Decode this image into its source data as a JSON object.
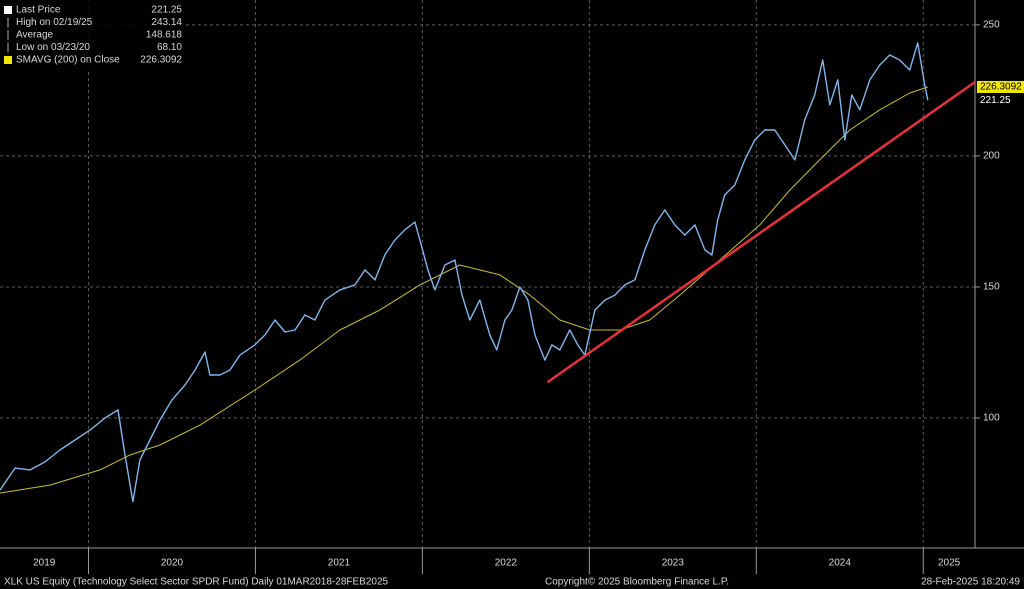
{
  "chart_data": {
    "type": "line",
    "legend": [
      {
        "label": "Last Price",
        "value": "221.25",
        "color": "#ffffff"
      },
      {
        "label": "High on 02/19/25",
        "value": "243.14"
      },
      {
        "label": "Average",
        "value": "148.618"
      },
      {
        "label": "Low on 03/23/20",
        "value": "68.10"
      },
      {
        "label": "SMAVG (200)  on Close",
        "value": "226.3092",
        "color": "#f2e600"
      }
    ],
    "series": [
      {
        "color": "#7fb6ee",
        "x": [
          2019.47,
          2019.56,
          2019.65,
          2019.739,
          2019.829,
          2019.919,
          2020.009,
          2020.099,
          2020.177,
          2020.219,
          2020.266,
          2020.308,
          2020.368,
          2020.428,
          2020.5,
          2020.578,
          2020.638,
          2020.698,
          2020.727,
          2020.787,
          2020.847,
          2020.907,
          2020.997,
          2021.057,
          2021.117,
          2021.177,
          2021.237,
          2021.296,
          2021.356,
          2021.416,
          2021.506,
          2021.596,
          2021.656,
          2021.716,
          2021.775,
          2021.835,
          2021.895,
          2021.955,
          2021.985,
          2022.033,
          2022.075,
          2022.135,
          2022.195,
          2022.237,
          2022.284,
          2022.344,
          2022.404,
          2022.446,
          2022.494,
          2022.536,
          2022.584,
          2022.632,
          2022.674,
          2022.734,
          2022.776,
          2022.823,
          2022.883,
          2022.931,
          2022.973,
          2023.033,
          2023.093,
          2023.153,
          2023.213,
          2023.273,
          2023.332,
          2023.392,
          2023.452,
          2023.512,
          2023.572,
          2023.632,
          2023.692,
          2023.734,
          2023.769,
          2023.811,
          2023.871,
          2023.931,
          2023.991,
          2024.051,
          2024.111,
          2024.171,
          2024.231,
          2024.29,
          2024.35,
          2024.398,
          2024.44,
          2024.488,
          2024.53,
          2024.572,
          2024.62,
          2024.68,
          2024.74,
          2024.799,
          2024.859,
          2024.919,
          2024.967,
          2025.009,
          2025.027
        ],
        "values": [
          72.5,
          80.9,
          80.2,
          83.2,
          87.8,
          91.6,
          95.4,
          100,
          103.1,
          85.9,
          68.1,
          84.0,
          91.6,
          99.2,
          106.9,
          112.6,
          118.3,
          125.2,
          116.4,
          116.4,
          118.3,
          124.0,
          127.9,
          131.7,
          137.4,
          132.8,
          133.6,
          139.3,
          137.4,
          145.0,
          148.9,
          150.8,
          156.5,
          152.7,
          162.2,
          167.9,
          171.8,
          174.8,
          167.9,
          156.5,
          148.9,
          158.4,
          160.3,
          146.9,
          137.4,
          145.0,
          131.7,
          126.0,
          137.4,
          141.2,
          150.0,
          145.0,
          131.7,
          122.1,
          127.9,
          126.0,
          133.6,
          127.9,
          124.0,
          141.2,
          145.0,
          146.9,
          150.8,
          152.7,
          164.1,
          173.7,
          179.4,
          173.7,
          169.8,
          173.7,
          164.1,
          162.2,
          175.6,
          185.1,
          188.9,
          198.5,
          206.1,
          209.9,
          209.9,
          204.2,
          198.5,
          213.7,
          223.3,
          236.6,
          219.5,
          229.0,
          206.1,
          223.3,
          217.6,
          229.0,
          234.7,
          238.5,
          236.6,
          232.8,
          243.14,
          227.1,
          221.25
        ]
      },
      {
        "color": "#c8c020",
        "x": [
          2019.47,
          2019.769,
          2020.069,
          2020.248,
          2020.428,
          2020.668,
          2020.997,
          2021.266,
          2021.506,
          2021.745,
          2021.985,
          2022.224,
          2022.464,
          2022.644,
          2022.823,
          2023.003,
          2023.183,
          2023.362,
          2023.542,
          2023.781,
          2024.021,
          2024.201,
          2024.38,
          2024.56,
          2024.74,
          2024.919,
          2025.027
        ],
        "values": [
          71.4,
          74.4,
          80.2,
          85.9,
          89.7,
          97.3,
          110.7,
          122.1,
          133.6,
          141.2,
          150.8,
          158.4,
          154.6,
          146.9,
          137.4,
          133.6,
          133.6,
          137.4,
          146.9,
          160.3,
          173.7,
          187.0,
          198.5,
          209.9,
          217.6,
          224.0,
          226.3092
        ]
      }
    ],
    "trendline": {
      "color": "#e8303a",
      "x": [
        2022.75,
        2025.31
      ],
      "values": [
        113.7,
        228.2
      ]
    },
    "xlim": [
      2019.47,
      2025.31
    ],
    "ylim": [
      50.4,
      259.5
    ],
    "yticks": [
      100,
      150,
      200,
      250
    ],
    "xticks": [
      {
        "value": 2019,
        "label": "2019"
      },
      {
        "value": 2020,
        "label": "2020"
      },
      {
        "value": 2021,
        "label": "2021"
      },
      {
        "value": 2022,
        "label": "2022"
      },
      {
        "value": 2023,
        "label": "2023"
      },
      {
        "value": 2024,
        "label": "2024"
      },
      {
        "value": 2025,
        "label": "2025"
      }
    ],
    "grid": true,
    "footer": {
      "left": "XLK US Equity (Technology Select Sector SPDR Fund)  Daily 01MAR2018-28FEB2025",
      "center": "Copyright© 2025 Bloomberg Finance L.P.",
      "right": "28-Feb-2025 18:20:49"
    }
  }
}
